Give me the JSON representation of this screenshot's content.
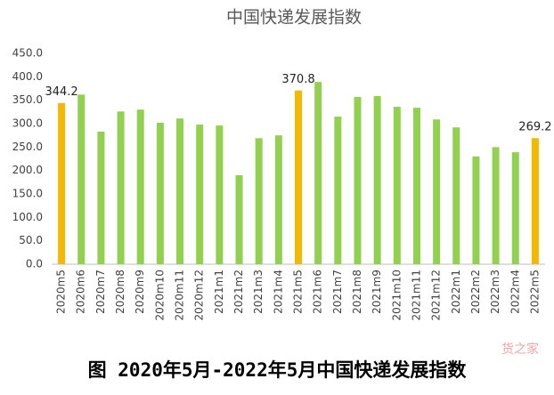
{
  "chart_data": {
    "type": "bar",
    "title": "中国快递发展指数",
    "caption": "图 2020年5月-2022年5月中国快递发展指数",
    "watermark": "货之家",
    "categories": [
      "2020m5",
      "2020m6",
      "2020m7",
      "2020m8",
      "2020m9",
      "2020m10",
      "2020m11",
      "2020m12",
      "2021m1",
      "2021m2",
      "2021m3",
      "2021m4",
      "2021m5",
      "2021m6",
      "2021m7",
      "2021m8",
      "2021m9",
      "2021m10",
      "2021m11",
      "2021m12",
      "2022m1",
      "2022m2",
      "2022m3",
      "2022m4",
      "2022m5"
    ],
    "values": [
      344.2,
      362,
      283,
      326,
      330,
      302,
      311,
      298,
      296,
      190,
      269,
      275,
      370.8,
      389,
      315,
      357,
      359,
      336,
      334,
      309,
      292,
      230,
      250,
      239,
      269.2
    ],
    "value_labels": [
      "344.2",
      null,
      null,
      null,
      null,
      null,
      null,
      null,
      null,
      null,
      null,
      null,
      "370.8",
      null,
      null,
      null,
      null,
      null,
      null,
      null,
      null,
      null,
      null,
      null,
      "269.2"
    ],
    "colors": [
      "#f5b800",
      "#92d050",
      "#92d050",
      "#92d050",
      "#92d050",
      "#92d050",
      "#92d050",
      "#92d050",
      "#92d050",
      "#92d050",
      "#92d050",
      "#92d050",
      "#f5b800",
      "#92d050",
      "#92d050",
      "#92d050",
      "#92d050",
      "#92d050",
      "#92d050",
      "#92d050",
      "#92d050",
      "#92d050",
      "#92d050",
      "#92d050",
      "#f5b800"
    ],
    "ylim": [
      0,
      450
    ],
    "yticks": [
      {
        "value": 0,
        "label": "0.0"
      },
      {
        "value": 50,
        "label": "50.0"
      },
      {
        "value": 100,
        "label": "100.0"
      },
      {
        "value": 150,
        "label": "150.0"
      },
      {
        "value": 200,
        "label": "200.0"
      },
      {
        "value": 250,
        "label": "250.0"
      },
      {
        "value": 300,
        "label": "300.0"
      },
      {
        "value": 350,
        "label": "350.0"
      },
      {
        "value": 400,
        "label": "400.0"
      },
      {
        "value": 450,
        "label": "450.0"
      }
    ],
    "grid": false
  }
}
